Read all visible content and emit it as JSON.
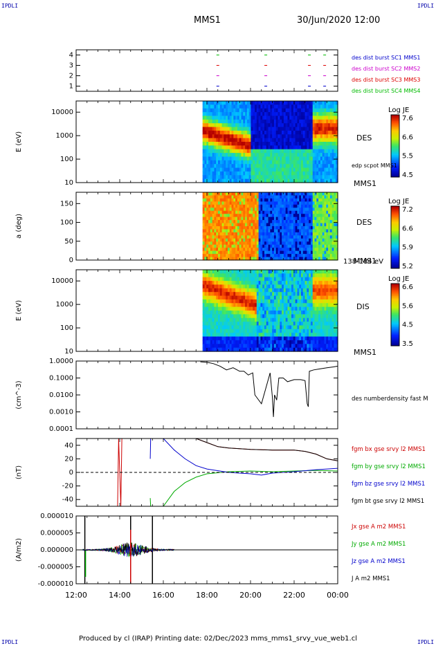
{
  "header": {
    "corner_label": "IPDLI",
    "spacecraft": "MMS1",
    "date_time": "30/Jun/2020 12:00"
  },
  "footer": {
    "text": "Produced by cl (IRAP)   Printing date: 02/Dec/2023   mms_mms1_srvy_vue_web1.cl"
  },
  "time_axis": {
    "start_hour": 12,
    "end_hour": 24,
    "ticks": [
      "12:00",
      "14:00",
      "16:00",
      "18:00",
      "20:00",
      "22:00",
      "00:00"
    ]
  },
  "chart_data": [
    {
      "type": "scatter",
      "panel": "burst",
      "ylim": [
        0.5,
        4.5
      ],
      "yticks": [
        "1",
        "2",
        "3",
        "4"
      ],
      "series": [
        {
          "name": "des dist burst SC1 MMS1",
          "color": "#0000cc",
          "y": 1,
          "x_hours": [
            18.5,
            20.7,
            22.7,
            23.4
          ]
        },
        {
          "name": "des dist burst SC2 MMS2",
          "color": "#cc00cc",
          "y": 2,
          "x_hours": [
            18.5,
            20.7,
            22.7,
            23.4
          ]
        },
        {
          "name": "des dist burst SC3 MMS3",
          "color": "#dd0000",
          "y": 3,
          "x_hours": [
            18.5,
            20.7,
            22.7,
            23.4
          ]
        },
        {
          "name": "des dist burst SC4 MMS4",
          "color": "#00bb00",
          "y": 4,
          "x_hours": [
            18.5,
            20.7,
            22.7,
            23.4
          ]
        }
      ]
    },
    {
      "type": "heatmap",
      "panel": "des_energy",
      "ylabel": "E (eV)",
      "yscale": "log",
      "ylim": [
        10,
        30000
      ],
      "yticks": [
        "10",
        "100",
        "1000",
        "10000"
      ],
      "data_start_hour": 17.8,
      "label": "DES",
      "extra_label": "edp scpot MMS1",
      "spacecraft_label": "MMS1",
      "colorbar": {
        "title": "Log JE",
        "range": [
          4.5,
          7.6
        ],
        "ticks": [
          "7.6",
          "6.6",
          "5.5",
          "4.5"
        ]
      }
    },
    {
      "type": "heatmap",
      "panel": "des_pitch",
      "ylabel": "a (deg)",
      "ylim": [
        0,
        180
      ],
      "yticks": [
        "0",
        "50",
        "100",
        "150"
      ],
      "data_start_hour": 17.8,
      "label": "DES",
      "spacecraft_label": "MMS1",
      "energy_range": "138-184 eV",
      "colorbar": {
        "title": "Log JE",
        "range": [
          5.2,
          7.2
        ],
        "ticks": [
          "7.2",
          "6.6",
          "5.9",
          "5.2"
        ]
      }
    },
    {
      "type": "heatmap",
      "panel": "dis_energy",
      "ylabel": "E (eV)",
      "yscale": "log",
      "ylim": [
        10,
        30000
      ],
      "yticks": [
        "10",
        "100",
        "1000",
        "10000"
      ],
      "data_start_hour": 17.8,
      "label": "DIS",
      "spacecraft_label": "MMS1",
      "colorbar": {
        "title": "Log JE",
        "range": [
          3.5,
          6.6
        ],
        "ticks": [
          "6.6",
          "5.6",
          "4.5",
          "3.5"
        ]
      }
    },
    {
      "type": "line",
      "panel": "density",
      "ylabel": "(cm^-3)",
      "yscale": "log",
      "ylim": [
        0.0001,
        1.0
      ],
      "yticks": [
        "0.0001",
        "0.0010",
        "0.0100",
        "0.1000",
        "1.0000"
      ],
      "series": [
        {
          "name": "des numberdensity fast M",
          "color": "#000000",
          "x": [
            17.7,
            18.0,
            18.3,
            18.6,
            18.9,
            19.2,
            19.5,
            19.7,
            19.9,
            20.1,
            20.2,
            20.5,
            20.9,
            21.0,
            21.05,
            21.1,
            21.2,
            21.3,
            21.5,
            21.7,
            22.0,
            22.3,
            22.5,
            22.6,
            22.65,
            22.7,
            22.9,
            23.2,
            23.5,
            23.8,
            24.0
          ],
          "y": [
            0.9,
            0.85,
            0.7,
            0.5,
            0.3,
            0.4,
            0.25,
            0.25,
            0.15,
            0.2,
            0.01,
            0.003,
            0.2,
            0.008,
            0.0005,
            0.01,
            0.005,
            0.1,
            0.1,
            0.06,
            0.08,
            0.08,
            0.07,
            0.003,
            0.002,
            0.25,
            0.3,
            0.35,
            0.4,
            0.45,
            0.5
          ]
        }
      ]
    },
    {
      "type": "line",
      "panel": "magnetic_field",
      "ylabel": "(nT)",
      "ylim": [
        -50,
        50
      ],
      "yticks": [
        "-40",
        "-20",
        "0",
        "20",
        "40"
      ],
      "series": [
        {
          "name": "fgm bx gse srvy l2 MMS1",
          "color": "#cc0000",
          "x": [
            13.9,
            13.95,
            14.05,
            14.1,
            15.4,
            17.5,
            18.0,
            18.5,
            19.0,
            20.0,
            21.0,
            22.0,
            22.5,
            23.0,
            23.5,
            24.0
          ],
          "y": [
            -50,
            50,
            -50,
            50,
            50,
            50,
            44,
            38,
            36,
            34,
            33,
            33,
            31,
            27,
            20,
            17
          ]
        },
        {
          "name": "fgm by gse srvy l2 MMS1",
          "color": "#00aa00",
          "x": [
            15.4,
            15.42,
            16.0,
            16.5,
            17.0,
            17.5,
            18.0,
            19.0,
            20.0,
            21.0,
            22.0,
            23.0,
            24.0
          ],
          "y": [
            -38,
            -50,
            -50,
            -28,
            -15,
            -7,
            -2,
            1,
            2,
            1,
            2,
            3,
            2
          ]
        },
        {
          "name": "fgm bz gse srvy l2 MMS1",
          "color": "#0000cc",
          "x": [
            15.4,
            15.42,
            16.0,
            16.5,
            17.0,
            17.5,
            18.0,
            19.0,
            20.0,
            20.5,
            21.0,
            22.0,
            23.0,
            24.0
          ],
          "y": [
            20,
            50,
            50,
            33,
            20,
            10,
            5,
            0,
            -2,
            -4,
            -1,
            1,
            4,
            6
          ]
        },
        {
          "name": "fgm bt gse srvy l2 MMS1",
          "color": "#000000",
          "x": [
            17.5,
            18.0,
            18.5,
            19.0,
            20.0,
            21.0,
            22.0,
            22.5,
            23.0,
            23.5,
            24.0
          ],
          "y": [
            50,
            44,
            38,
            36,
            34,
            33,
            33,
            31,
            27,
            20,
            17
          ]
        }
      ]
    },
    {
      "type": "line",
      "panel": "current_density",
      "ylabel": "(A/m2)",
      "ylim": [
        -0.0001,
        0.0001
      ],
      "yticks": [
        "-0.000010",
        "-0.000005",
        "0.000000",
        "0.000005",
        "0.000010"
      ],
      "series": [
        {
          "name": "Jx gse A m2 MMS1",
          "color": "#cc0000"
        },
        {
          "name": "Jy gse A m2 MMS1",
          "color": "#00aa00"
        },
        {
          "name": "Jz gse A m2 MMS1",
          "color": "#0000cc"
        },
        {
          "name": "J A m2 MMS1",
          "color": "#000000"
        }
      ],
      "spikes_hours": [
        12.4,
        14.5,
        15.5
      ]
    }
  ]
}
